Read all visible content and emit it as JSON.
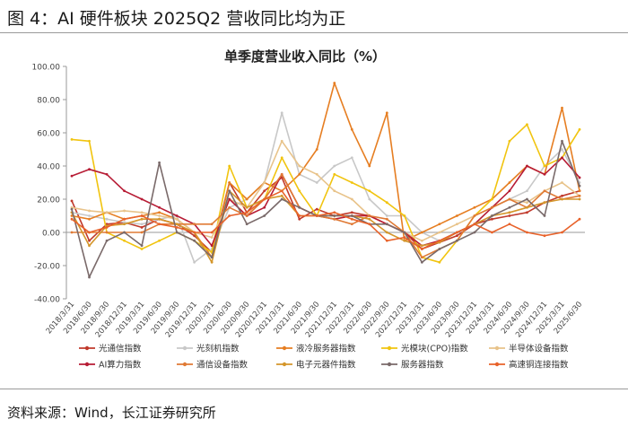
{
  "figure": {
    "title": "图 4：AI 硬件板块 2025Q2 营收同比均为正",
    "source": "资料来源：Wind，长江证券研究所"
  },
  "chart_data": {
    "type": "line",
    "title": "单季度营业收入同比（%）",
    "xlabel": "",
    "ylabel": "",
    "ylim": [
      -40,
      100
    ],
    "yticks": [
      "100.00",
      "80.00",
      "60.00",
      "40.00",
      "20.00",
      "0.00",
      "-20.00",
      "-40.00"
    ],
    "grid": false,
    "legend_position": "bottom",
    "x": [
      "2018/3/31",
      "2018/6/30",
      "2018/9/30",
      "2018/12/31",
      "2019/3/31",
      "2019/6/30",
      "2019/9/30",
      "2019/12/31",
      "2020/3/31",
      "2020/6/30",
      "2020/9/30",
      "2020/12/31",
      "2021/3/31",
      "2021/6/30",
      "2021/9/30",
      "2021/12/31",
      "2022/3/31",
      "2022/6/30",
      "2022/9/30",
      "2022/12/31",
      "2023/3/31",
      "2023/6/30",
      "2023/9/30",
      "2023/12/31",
      "2024/3/31",
      "2024/6/30",
      "2024/9/30",
      "2024/12/31",
      "2025/3/31",
      "2025/6/30"
    ],
    "series": [
      {
        "name": "光通信指数",
        "color": "#c0392b",
        "values": [
          19,
          -5,
          5,
          6,
          3,
          8,
          5,
          -2,
          -12,
          30,
          12,
          25,
          33,
          8,
          14,
          10,
          12,
          10,
          5,
          0,
          -10,
          -6,
          -2,
          5,
          8,
          10,
          12,
          18,
          22,
          25
        ]
      },
      {
        "name": "光刻机指数",
        "color": "#c8c8c8",
        "values": [
          12,
          10,
          8,
          6,
          5,
          8,
          10,
          -18,
          -10,
          15,
          20,
          30,
          72,
          35,
          30,
          40,
          45,
          20,
          10,
          10,
          0,
          -5,
          0,
          5,
          15,
          20,
          25,
          40,
          50,
          30
        ]
      },
      {
        "name": "液冷服务器指数",
        "color": "#e67e22",
        "values": [
          10,
          8,
          12,
          8,
          10,
          12,
          8,
          0,
          -15,
          30,
          20,
          30,
          25,
          35,
          50,
          90,
          62,
          40,
          72,
          -5,
          0,
          5,
          10,
          15,
          20,
          30,
          40,
          35,
          75,
          25
        ]
      },
      {
        "name": "光模块(CPO)指数",
        "color": "#f1c40f",
        "values": [
          56,
          55,
          0,
          -5,
          -10,
          -5,
          0,
          -5,
          -12,
          40,
          15,
          20,
          45,
          25,
          10,
          35,
          30,
          25,
          18,
          10,
          -15,
          -18,
          -5,
          10,
          20,
          55,
          65,
          40,
          45,
          62
        ]
      },
      {
        "name": "半导体设备指数",
        "color": "#e8c38a",
        "values": [
          15,
          13,
          12,
          13,
          12,
          10,
          8,
          0,
          -3,
          20,
          15,
          30,
          55,
          40,
          35,
          25,
          20,
          10,
          5,
          0,
          -5,
          0,
          5,
          10,
          15,
          20,
          18,
          25,
          30,
          22
        ]
      },
      {
        "name": "AI算力指数",
        "color": "#b71c35",
        "values": [
          34,
          38,
          35,
          25,
          20,
          15,
          10,
          5,
          -8,
          20,
          10,
          15,
          35,
          15,
          10,
          8,
          10,
          10,
          5,
          0,
          -8,
          -5,
          0,
          5,
          15,
          25,
          40,
          35,
          45,
          33
        ]
      },
      {
        "name": "通信设备指数",
        "color": "#e07a35",
        "values": [
          0,
          0,
          0,
          0,
          0,
          5,
          5,
          5,
          5,
          15,
          10,
          20,
          35,
          15,
          10,
          8,
          5,
          10,
          8,
          0,
          -15,
          -10,
          -5,
          10,
          15,
          20,
          15,
          25,
          20,
          22
        ]
      },
      {
        "name": "电子元器件指数",
        "color": "#d4962b",
        "values": [
          12,
          -8,
          4,
          5,
          8,
          8,
          5,
          0,
          -18,
          25,
          15,
          20,
          22,
          10,
          10,
          10,
          10,
          8,
          0,
          -5,
          -8,
          -6,
          0,
          5,
          10,
          12,
          15,
          18,
          20,
          20
        ]
      },
      {
        "name": "服务器指数",
        "color": "#7a6a6a",
        "values": [
          14,
          -27,
          -5,
          0,
          -8,
          42,
          0,
          -5,
          -15,
          25,
          5,
          10,
          20,
          15,
          10,
          10,
          10,
          5,
          5,
          0,
          -18,
          -10,
          -5,
          0,
          10,
          15,
          20,
          10,
          55,
          28
        ]
      },
      {
        "name": "高速铜连接指数",
        "color": "#e8622a",
        "values": [
          8,
          0,
          3,
          8,
          10,
          5,
          3,
          0,
          0,
          10,
          12,
          20,
          25,
          10,
          10,
          12,
          8,
          5,
          -5,
          -3,
          -10,
          -5,
          0,
          5,
          0,
          5,
          0,
          -2,
          0,
          8
        ]
      }
    ]
  }
}
